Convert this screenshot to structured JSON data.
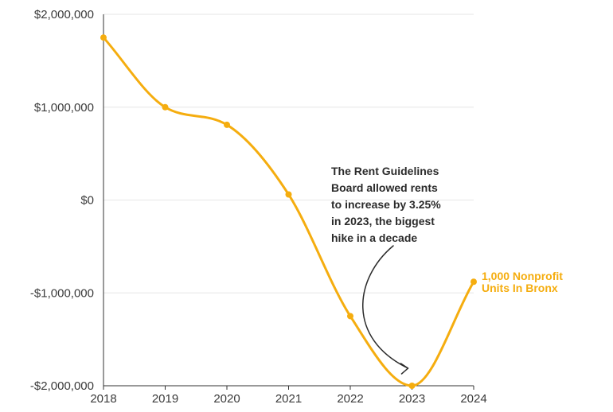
{
  "chart_data": {
    "type": "line",
    "title": "",
    "xlabel": "",
    "ylabel": "",
    "x": [
      2018,
      2019,
      2020,
      2021,
      2022,
      2023,
      2024
    ],
    "x_tick_labels": [
      "2018",
      "2019",
      "2020",
      "2021",
      "2022",
      "2023",
      "2024"
    ],
    "ylim": [
      -2000000,
      2000000
    ],
    "y_ticks": [
      2000000,
      1000000,
      0,
      -1000000,
      -2000000
    ],
    "y_tick_labels": [
      "$2,000,000",
      "$1,000,000",
      "$0",
      "-$1,000,000",
      "-$2,000,000"
    ],
    "grid": true,
    "series": [
      {
        "name": "1,000 Nonprofit Units In Bronx",
        "label_lines": [
          "1,000 Nonprofit",
          "Units In Bronx"
        ],
        "color": "#f5ad0f",
        "values": [
          1750000,
          1000000,
          810000,
          60000,
          -1250000,
          -2000000,
          -880000
        ]
      }
    ],
    "annotation": {
      "lines": [
        "The Rent Guidelines",
        "Board allowed rents",
        "to increase by 3.25%",
        "in 2023, the biggest",
        "hike in a decade"
      ],
      "target_x": 2023
    }
  }
}
